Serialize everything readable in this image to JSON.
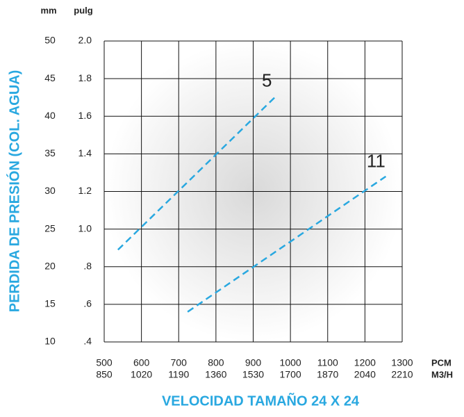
{
  "chart_data": {
    "type": "line",
    "xlabel": "VELOCIDAD  TAMAÑO 24 X 24",
    "ylabel": "PERDIDA DE PRESIÓN (COL. AGUA)",
    "y_unit": "pulg",
    "y2_unit": "mm",
    "x_unit": "PCM",
    "x2_unit": "M3/H",
    "xlim": [
      500,
      1300
    ],
    "xticks": [
      500,
      600,
      700,
      800,
      900,
      1000,
      1100,
      1200,
      1300
    ],
    "x2lim": [
      850,
      2210
    ],
    "x2ticks": [
      850,
      1020,
      1190,
      1360,
      1530,
      1700,
      1870,
      2040,
      2210
    ],
    "ylim": [
      0.4,
      2.0
    ],
    "yticks": [
      {
        "value": 2.0,
        "label": "2.0"
      },
      {
        "value": 1.8,
        "label": "1.8"
      },
      {
        "value": 1.6,
        "label": "1.6"
      },
      {
        "value": 1.4,
        "label": "1.4"
      },
      {
        "value": 1.2,
        "label": "1.2"
      },
      {
        "value": 1.0,
        "label": "1.0"
      },
      {
        "value": 0.8,
        "label": ".8"
      },
      {
        "value": 0.6,
        "label": ".6"
      },
      {
        "value": 0.4,
        "label": ".4"
      }
    ],
    "y2lim": [
      10,
      50
    ],
    "y2ticks": [
      50,
      45,
      40,
      35,
      30,
      25,
      20,
      15,
      10
    ],
    "grid": true,
    "series": [
      {
        "name": "5",
        "color": "#29a8e0",
        "x": [
          537,
          963
        ],
        "values": [
          0.89,
          1.71
        ]
      },
      {
        "name": "11",
        "color": "#29a8e0",
        "x": [
          724,
          1256
        ],
        "values": [
          0.56,
          1.28
        ]
      }
    ]
  }
}
